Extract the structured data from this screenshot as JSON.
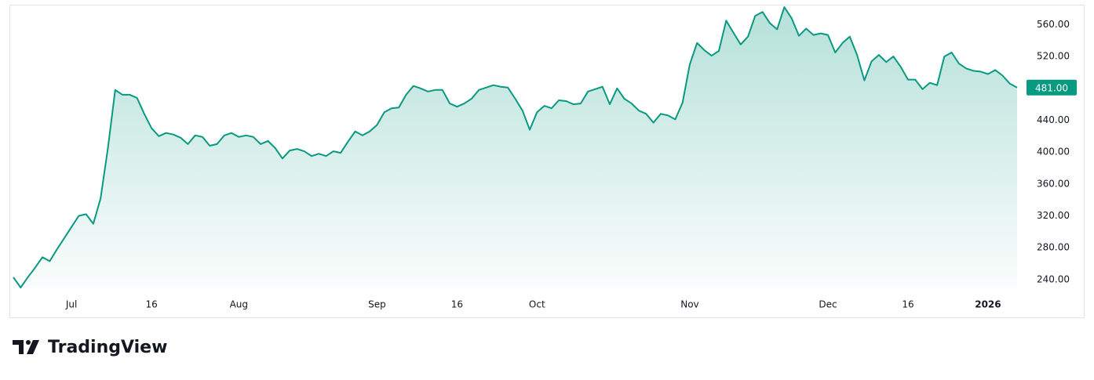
{
  "chart_data": {
    "type": "area",
    "values": [
      243,
      230,
      243,
      255,
      268,
      263,
      278,
      292,
      306,
      320,
      322,
      310,
      342,
      405,
      478,
      472,
      472,
      468,
      448,
      430,
      420,
      424,
      422,
      418,
      410,
      421,
      419,
      408,
      410,
      421,
      424,
      419,
      421,
      419,
      410,
      414,
      405,
      392,
      402,
      404,
      401,
      395,
      398,
      395,
      401,
      399,
      413,
      426,
      421,
      426,
      434,
      450,
      455,
      456,
      472,
      483,
      480,
      476,
      478,
      478,
      461,
      457,
      461,
      467,
      478,
      481,
      484,
      482,
      481,
      467,
      452,
      428,
      450,
      458,
      455,
      465,
      464,
      460,
      461,
      476,
      479,
      482,
      460,
      480,
      467,
      461,
      452,
      448,
      437,
      448,
      446,
      441,
      462,
      510,
      537,
      528,
      521,
      527,
      565,
      550,
      535,
      545,
      571,
      576,
      562,
      554,
      582,
      568,
      546,
      555,
      547,
      549,
      547,
      525,
      537,
      545,
      522,
      490,
      514,
      522,
      513,
      520,
      507,
      491,
      491,
      479,
      487,
      484,
      520,
      525,
      511,
      505,
      502,
      501,
      498,
      503,
      496,
      486,
      481
    ],
    "value_labels": [
      null,
      null,
      null,
      null,
      null,
      null,
      null,
      null,
      null,
      null,
      null,
      null,
      null,
      null,
      null,
      null,
      null,
      null,
      null,
      null,
      null,
      null,
      null,
      null,
      null,
      null,
      null,
      null,
      null,
      null,
      null,
      null,
      null,
      null,
      null,
      null,
      null,
      null,
      null,
      null,
      null,
      null,
      null,
      null,
      null,
      null,
      null,
      null,
      null,
      null,
      null,
      null,
      null,
      null,
      null,
      null,
      null,
      null,
      null,
      null,
      null,
      null,
      null,
      null,
      null,
      null,
      null,
      null,
      null,
      null,
      null,
      null,
      null,
      null,
      null,
      null,
      null,
      null,
      null,
      null,
      null,
      null,
      null,
      null,
      null,
      null,
      null,
      null,
      null,
      null,
      null,
      null,
      null,
      null,
      null,
      null,
      null,
      null,
      null,
      null,
      null,
      null,
      null,
      null,
      null,
      null,
      null,
      null,
      null,
      null,
      null,
      null,
      null,
      null,
      null,
      null,
      null,
      null,
      null,
      null,
      null,
      null,
      null,
      null,
      null,
      null,
      null,
      null,
      null,
      null,
      null,
      null,
      null,
      null,
      null,
      null,
      null,
      null,
      "481.00"
    ],
    "color": "#089981",
    "xlim": [
      0,
      138
    ],
    "xticks": [
      {
        "value": 8,
        "label": "Jul"
      },
      {
        "value": 19,
        "label": "16"
      },
      {
        "value": 31,
        "label": "Aug"
      },
      {
        "value": 50,
        "label": "Sep"
      },
      {
        "value": 61,
        "label": "16"
      },
      {
        "value": 72,
        "label": "Oct"
      },
      {
        "value": 93,
        "label": "Nov"
      },
      {
        "value": 112,
        "label": "Dec"
      },
      {
        "value": 123,
        "label": "16"
      },
      {
        "value": 134,
        "label": "2026"
      }
    ],
    "ylim": [
      229,
      585
    ],
    "yticks": [
      {
        "value": 240,
        "label": "240.00"
      },
      {
        "value": 280,
        "label": "280.00"
      },
      {
        "value": 320,
        "label": "320.00"
      },
      {
        "value": 360,
        "label": "360.00"
      },
      {
        "value": 400,
        "label": "400.00"
      },
      {
        "value": 440,
        "label": "440.00"
      },
      {
        "value": 480,
        "label": "480.00"
      },
      {
        "value": 520,
        "label": "520.00"
      },
      {
        "value": 560,
        "label": "560.00"
      }
    ],
    "grid": false
  },
  "branding": "TradingView"
}
